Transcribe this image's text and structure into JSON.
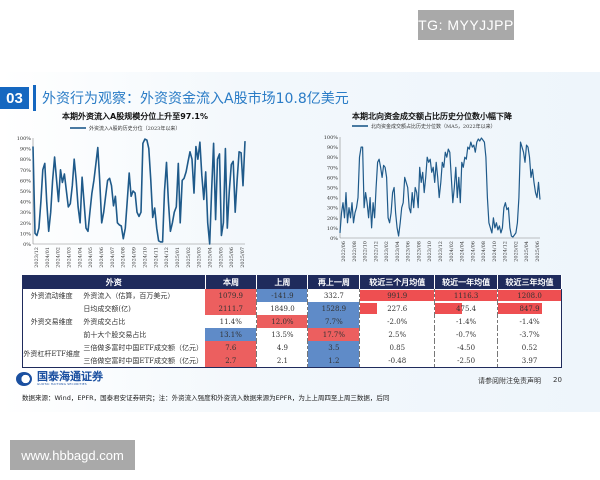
{
  "watermarks": {
    "top": "TG: MYYJJPP",
    "bottom": "www.hbbagd.com"
  },
  "section": {
    "number": "03",
    "title": "外资行为观察：外资资金流入A股市场10.8亿美元"
  },
  "colors": {
    "accent": "#1567c0",
    "line": "#1f5a8a",
    "header": "#1f2b5c",
    "red": "#ec5f5f",
    "blue": "#5f8bc8"
  },
  "chart_data": [
    {
      "type": "line",
      "title": "本期外资流入A股规模分位上升至97.1%",
      "series": [
        {
          "name": "外资流入A股的历史分位（2023年以来）",
          "values": [
            92,
            10,
            8,
            15,
            40,
            70,
            76,
            40,
            12,
            30,
            60,
            82,
            60,
            40,
            70,
            58,
            66,
            50,
            35,
            38,
            55,
            80,
            60,
            35,
            20,
            63,
            40,
            15,
            12,
            30,
            48,
            60,
            75,
            91,
            60,
            20,
            30,
            45,
            60,
            62,
            55,
            36,
            45,
            20,
            18,
            17,
            5,
            15,
            40,
            67,
            45,
            50,
            48,
            30,
            26,
            30,
            95,
            99,
            98,
            90,
            60,
            25,
            34,
            15,
            3,
            2,
            2,
            50,
            77,
            40,
            12,
            20,
            30,
            35,
            76,
            20,
            60,
            62,
            68,
            78,
            87,
            80,
            48,
            92,
            80,
            96,
            65,
            42,
            68,
            20,
            0,
            50,
            95,
            23,
            80,
            85,
            8,
            20,
            90,
            15,
            50,
            75,
            78,
            30,
            60,
            87,
            86,
            55,
            97.1
          ]
        }
      ],
      "x_tick_labels": [
        "2023/12",
        "2024/01",
        "2024/02",
        "2024/03",
        "2024/04",
        "2024/05",
        "2024/06",
        "2024/07",
        "2024/08",
        "2024/09",
        "2024/10",
        "2024/11",
        "2024/12",
        "2025/01",
        "2025/02",
        "2025/03",
        "2025/04",
        "2025/05",
        "2025/06",
        "2025/07"
      ],
      "y_tick_labels": [
        "0%",
        "10%",
        "20%",
        "30%",
        "40%",
        "50%",
        "60%",
        "70%",
        "80%",
        "90%",
        "100%"
      ],
      "ylim": [
        0,
        100
      ],
      "legend": "top"
    },
    {
      "type": "line",
      "title": "本期北向资金成交额占比历史分位数小幅下降",
      "series": [
        {
          "name": "北向资金成交额占比历史分位数（MA5，2022年以来）",
          "values": [
            5,
            25,
            35,
            20,
            45,
            15,
            30,
            20,
            35,
            15,
            25,
            30,
            40,
            80,
            90,
            90,
            30,
            45,
            35,
            20,
            40,
            10,
            35,
            20,
            50,
            75,
            78,
            70,
            60,
            72,
            70,
            60,
            20,
            15,
            25,
            45,
            50,
            25,
            10,
            2,
            15,
            30,
            35,
            60,
            55,
            50,
            30,
            25,
            45,
            30,
            50,
            45,
            30,
            70,
            55,
            65,
            45,
            60,
            80,
            75,
            78,
            65,
            70,
            55,
            75,
            60,
            40,
            55,
            75,
            70,
            85,
            80,
            88,
            85,
            60,
            35,
            50,
            70,
            40,
            60,
            35,
            75,
            70,
            80,
            78,
            90,
            88,
            95,
            90,
            92,
            85,
            95,
            98,
            96,
            99,
            97,
            95,
            80,
            40,
            15,
            10,
            5,
            20,
            10,
            15,
            8,
            12,
            5,
            10,
            30,
            35,
            28,
            30,
            10,
            2,
            1,
            3,
            5,
            15,
            40,
            95,
            90,
            85,
            75,
            92,
            90,
            80,
            60,
            68,
            55,
            45,
            40,
            55,
            38
          ]
        }
      ],
      "x_tick_labels": [
        "2022/06",
        "2022/08",
        "2022/10",
        "2022/12",
        "2023/02",
        "2023/04",
        "2023/06",
        "2023/08",
        "2023/10",
        "2023/12",
        "2024/02",
        "2024/04",
        "2024/06",
        "2024/08",
        "2024/10",
        "2024/12",
        "2025/02",
        "2025/04",
        "2025/06"
      ],
      "y_tick_labels": [
        "0%",
        "10%",
        "20%",
        "30%",
        "40%",
        "50%",
        "60%",
        "70%",
        "80%",
        "90%",
        "100%"
      ],
      "ylim": [
        0,
        100
      ],
      "legend": "top"
    }
  ],
  "table": {
    "headers": [
      "外资",
      "本周",
      "上周",
      "再上一周",
      "较近三个月均值",
      "较近一年均值",
      "较近三年均值"
    ],
    "dimensions": [
      "外资流动维度",
      "外资交易维度",
      "外资杠杆ETF维度"
    ],
    "rows": [
      {
        "label": "外资流入（估算，百万美元）",
        "cells": [
          {
            "v": "1079.9",
            "c": "red"
          },
          {
            "v": "-141.9",
            "c": "blue"
          },
          {
            "v": "332.7",
            "c": ""
          },
          {
            "v": "991.9",
            "bar": 991.9
          },
          {
            "v": "1116.3",
            "bar": 1116.3
          },
          {
            "v": "1208.0",
            "bar": 1208.0
          }
        ]
      },
      {
        "label": "日均成交额(亿)",
        "cells": [
          {
            "v": "2111.7",
            "c": "red"
          },
          {
            "v": "1849.0",
            "c": ""
          },
          {
            "v": "1528.9",
            "c": "blue"
          },
          {
            "v": "227.6",
            "bar": 227.6
          },
          {
            "v": "475.4",
            "bar": 475.4
          },
          {
            "v": "847.9",
            "bar": 847.9
          }
        ]
      },
      {
        "label": "外资成交占比",
        "cells": [
          {
            "v": "11.4%",
            "c": ""
          },
          {
            "v": "12.0%",
            "c": "red"
          },
          {
            "v": "7.7%",
            "c": "blue"
          },
          {
            "v": "-2.0%"
          },
          {
            "v": "-1.4%"
          },
          {
            "v": "-1.4%"
          }
        ]
      },
      {
        "label": "前十大个股交易占比",
        "cells": [
          {
            "v": "13.1%",
            "c": "blue"
          },
          {
            "v": "13.5%",
            "c": ""
          },
          {
            "v": "17.7%",
            "c": "red"
          },
          {
            "v": "2.5%"
          },
          {
            "v": "-0.7%"
          },
          {
            "v": "-3.7%"
          }
        ]
      },
      {
        "label": "三倍做多富时中国ETF成交额（亿元）",
        "cells": [
          {
            "v": "7.6",
            "c": "red"
          },
          {
            "v": "4.9",
            "c": ""
          },
          {
            "v": "3.5",
            "c": "blue"
          },
          {
            "v": "0.85"
          },
          {
            "v": "-4.50"
          },
          {
            "v": "0.52"
          }
        ]
      },
      {
        "label": "三倍做空富时中国ETF成交额（亿元）",
        "cells": [
          {
            "v": "2.7",
            "c": "red"
          },
          {
            "v": "2.1",
            "c": ""
          },
          {
            "v": "1.2",
            "c": "blue"
          },
          {
            "v": "-0.48"
          },
          {
            "v": "-2.50"
          },
          {
            "v": "3.97"
          }
        ]
      }
    ]
  },
  "footer": {
    "logo": "国泰海通证券",
    "logo_sub": "GUOTAI HAITONG SECURITIES",
    "source": "数据来源：Wind，EPFR，国泰君安证券研究；注：外资流入强度和外资流入数据来源为EPFR，为上上周四至上周三数据，后同",
    "disclaimer": "请参阅附注免责声明",
    "page": "20"
  }
}
